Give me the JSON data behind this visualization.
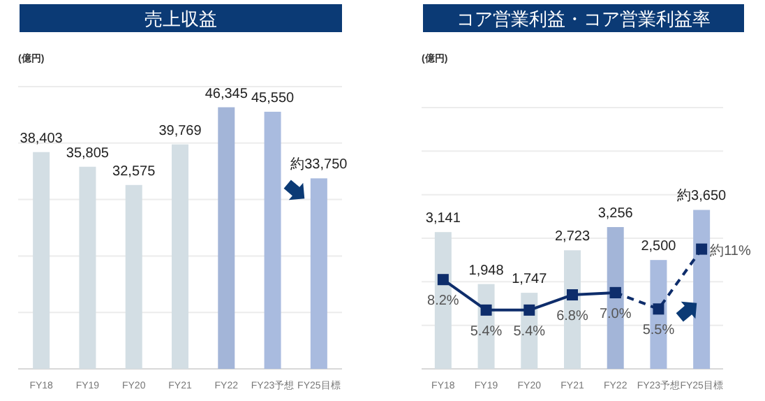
{
  "chart_data": [
    {
      "type": "bar",
      "title": "売上収益",
      "ylabel": "(億円)",
      "categories": [
        "FY18",
        "FY19",
        "FY20",
        "FY21",
        "FY22",
        "FY23予想",
        "FY25目標"
      ],
      "values": [
        38403,
        35805,
        32575,
        39769,
        46345,
        45550,
        33750
      ],
      "colors": [
        "#d3dee4",
        "#d3dee4",
        "#d3dee4",
        "#d3dee4",
        "#a3b5d8",
        "#a9bbdf",
        "#a9bbdf"
      ],
      "value_labels": [
        "38,403",
        "35,805",
        "32,575",
        "39,769",
        "46,345",
        "45,550",
        "約33,750"
      ],
      "ylim": [
        0,
        50000
      ],
      "yticks": [
        0,
        10000,
        20000,
        30000,
        40000,
        50000
      ],
      "grid": "y",
      "tick_labels": "x"
    },
    {
      "type": "bar",
      "title": "コア営業利益・コア営業利益率",
      "ylabel": "(億円)",
      "categories": [
        "FY18",
        "FY19",
        "FY20",
        "FY21",
        "FY22",
        "FY23予想",
        "FY25目標"
      ],
      "series": [
        {
          "type": "bar",
          "values": [
            3141,
            1948,
            1747,
            2723,
            3256,
            2500,
            3650
          ],
          "colors": [
            "#d3dee4",
            "#d3dee4",
            "#d3dee4",
            "#d3dee4",
            "#a3b5d8",
            "#a9bbdf",
            "#a9bbdf"
          ],
          "value_labels": [
            "3,141",
            "1,948",
            "1,747",
            "2,723",
            "3,256",
            "2,500",
            "約3,650"
          ]
        },
        {
          "type": "line",
          "axis": "y2",
          "color": "#0e2d6b",
          "line_style": "solid",
          "marker": "square",
          "values": [
            8.2,
            5.4,
            5.4,
            6.8,
            7.0,
            null,
            null
          ],
          "value_labels": [
            "8.2%",
            "5.4%",
            "5.4%",
            "6.8%",
            "7.0%",
            null,
            null
          ]
        },
        {
          "type": "line",
          "axis": "y2",
          "color": "#0e2d6b",
          "line_style": "dashed",
          "marker": "square",
          "values": [
            null,
            null,
            null,
            null,
            7.0,
            5.5,
            11
          ],
          "value_labels": [
            null,
            null,
            null,
            null,
            null,
            "5.5%",
            "約11%"
          ]
        }
      ],
      "ylim": [
        0,
        6000
      ],
      "yticks": [
        0,
        1000,
        2000,
        3000,
        4000,
        5000,
        6000
      ],
      "y2lim": [
        0,
        24
      ],
      "grid": "y",
      "tick_labels": "x"
    }
  ]
}
